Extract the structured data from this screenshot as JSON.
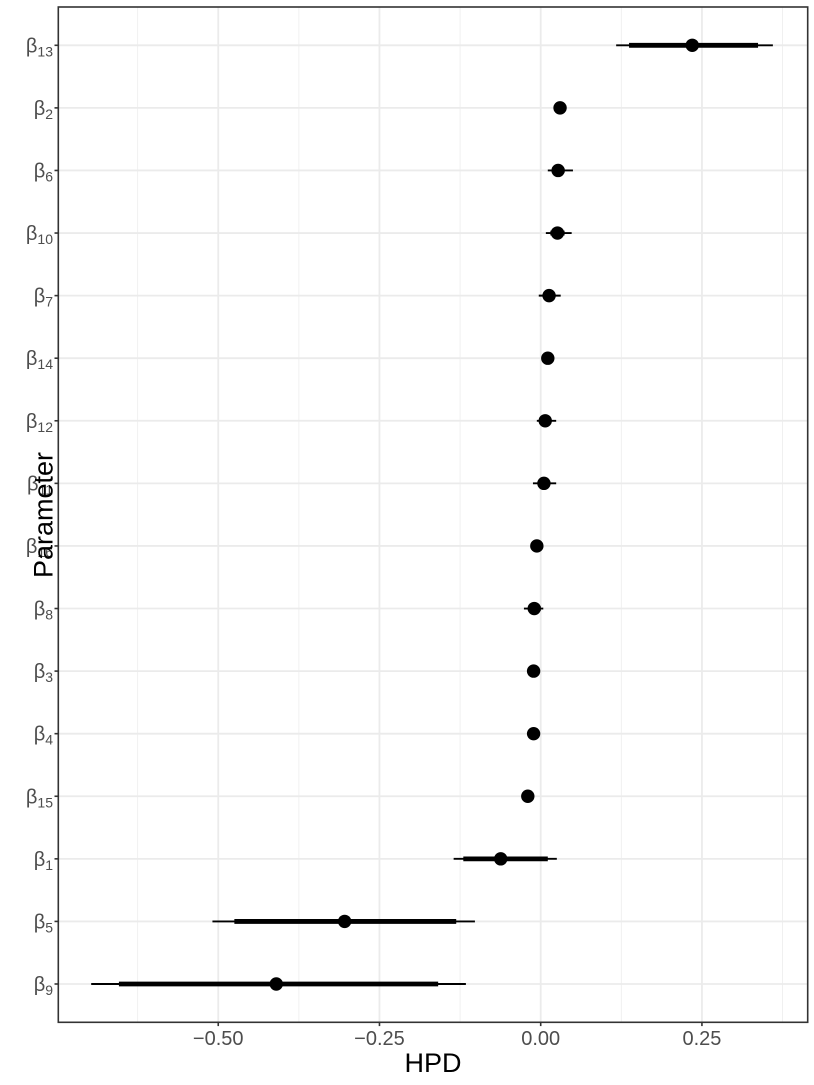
{
  "chart_data": {
    "type": "scatter",
    "style": "pointinterval-forest-plot",
    "title": "",
    "xlabel": "HPD",
    "ylabel": "Parameter",
    "xlim": [
      -0.748,
      0.414
    ],
    "x_major_ticks": [
      -0.5,
      -0.25,
      0.0,
      0.25
    ],
    "x_tick_labels": [
      "−0.50",
      "−0.25",
      "0.00",
      "0.25"
    ],
    "x_minor_ticks": [
      -0.625,
      -0.375,
      -0.125,
      0.125,
      0.375
    ],
    "grid": true,
    "legend": "none",
    "symbol_base": "β",
    "categories": [
      "β13",
      "β2",
      "β6",
      "β10",
      "β7",
      "β14",
      "β12",
      "β11",
      "β16",
      "β8",
      "β3",
      "β4",
      "β15",
      "β1",
      "β5",
      "β9"
    ],
    "rows": [
      {
        "sub": "13",
        "point": 0.235,
        "thick_low": 0.137,
        "thick_high": 0.337,
        "thin_low": 0.117,
        "thin_high": 0.36
      },
      {
        "sub": "2",
        "point": 0.03,
        "thick_low": 0.025,
        "thick_high": 0.036,
        "thin_low": 0.021,
        "thin_high": 0.04
      },
      {
        "sub": "6",
        "point": 0.027,
        "thick_low": 0.02,
        "thick_high": 0.037,
        "thin_low": 0.011,
        "thin_high": 0.05
      },
      {
        "sub": "10",
        "point": 0.026,
        "thick_low": 0.015,
        "thick_high": 0.037,
        "thin_low": 0.008,
        "thin_high": 0.048
      },
      {
        "sub": "7",
        "point": 0.013,
        "thick_low": 0.005,
        "thick_high": 0.021,
        "thin_low": -0.003,
        "thin_high": 0.031
      },
      {
        "sub": "14",
        "point": 0.011,
        "thick_low": 0.006,
        "thick_high": 0.016,
        "thin_low": 0.002,
        "thin_high": 0.02
      },
      {
        "sub": "12",
        "point": 0.007,
        "thick_low": 0.0,
        "thick_high": 0.014,
        "thin_low": -0.006,
        "thin_high": 0.024
      },
      {
        "sub": "11",
        "point": 0.005,
        "thick_low": -0.004,
        "thick_high": 0.013,
        "thin_low": -0.012,
        "thin_high": 0.024
      },
      {
        "sub": "16",
        "point": -0.006,
        "thick_low": -0.01,
        "thick_high": -0.002,
        "thin_low": -0.014,
        "thin_high": 0.002
      },
      {
        "sub": "8",
        "point": -0.01,
        "thick_low": -0.019,
        "thick_high": 0.0,
        "thin_low": -0.026,
        "thin_high": 0.004
      },
      {
        "sub": "3",
        "point": -0.011,
        "thick_low": -0.015,
        "thick_high": -0.007,
        "thin_low": -0.019,
        "thin_high": -0.003
      },
      {
        "sub": "4",
        "point": -0.011,
        "thick_low": -0.015,
        "thick_high": -0.007,
        "thin_low": -0.019,
        "thin_high": -0.003
      },
      {
        "sub": "15",
        "point": -0.02,
        "thick_low": -0.024,
        "thick_high": -0.016,
        "thin_low": -0.028,
        "thin_high": -0.012
      },
      {
        "sub": "1",
        "point": -0.062,
        "thick_low": -0.12,
        "thick_high": 0.011,
        "thin_low": -0.135,
        "thin_high": 0.025
      },
      {
        "sub": "5",
        "point": -0.304,
        "thick_low": -0.475,
        "thick_high": -0.131,
        "thin_low": -0.509,
        "thin_high": -0.102
      },
      {
        "sub": "9",
        "point": -0.41,
        "thick_low": -0.654,
        "thick_high": -0.159,
        "thin_low": -0.697,
        "thin_high": -0.116
      }
    ],
    "colors": {
      "background": "#FFFFFF",
      "panel_background": "#FFFFFF",
      "grid_major": "#EBEBEB",
      "grid_minor": "#EFEFEF",
      "panel_border": "#333333",
      "tick_mark": "#333333",
      "tick_label": "#4D4D4D",
      "axis_title": "#000000",
      "data": "#000000"
    }
  }
}
